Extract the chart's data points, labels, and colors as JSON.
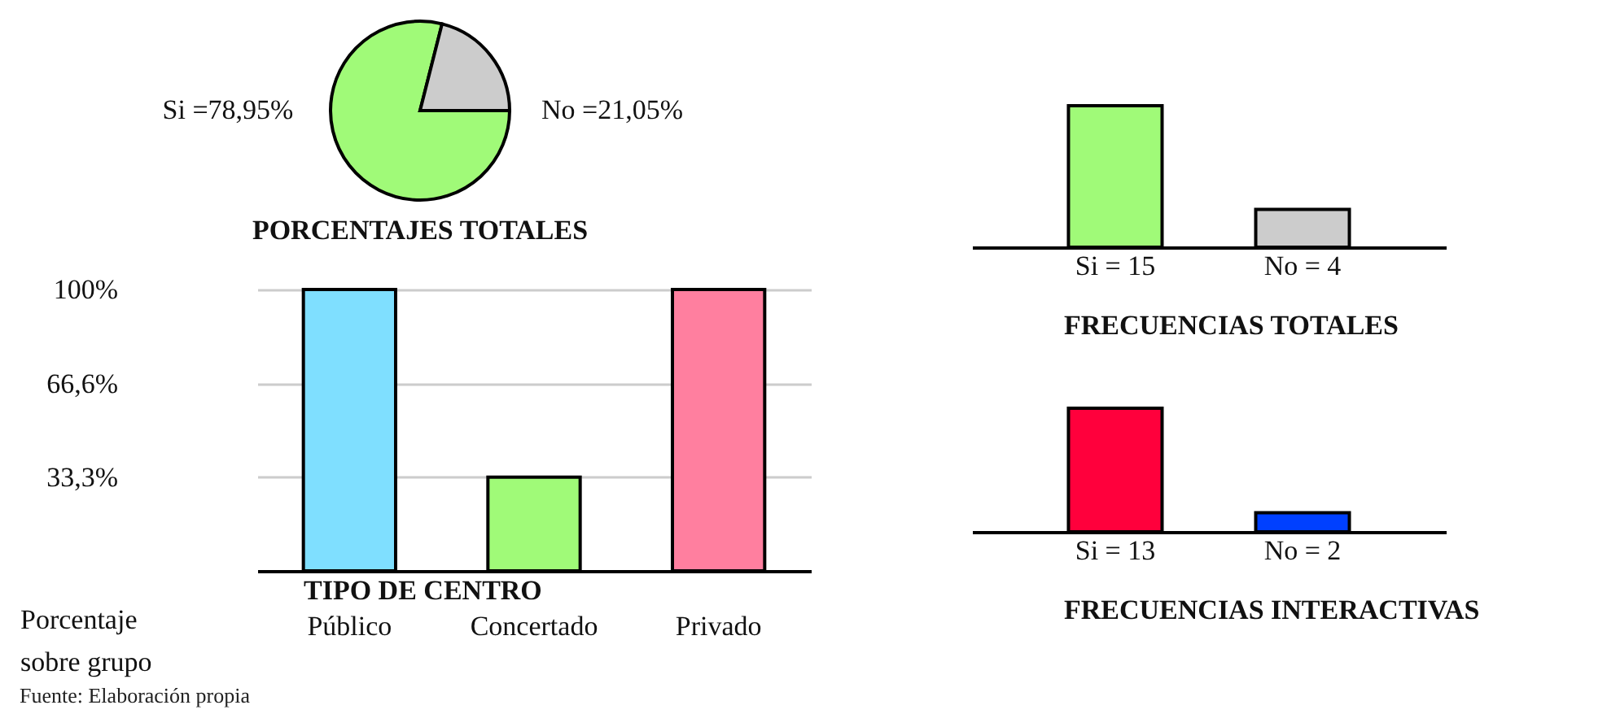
{
  "chart_data": [
    {
      "type": "pie",
      "title": "PORCENTAJES TOTALES",
      "categories": [
        "Si =78,95%",
        "No =21,05%"
      ],
      "values": [
        78.95,
        21.05
      ],
      "colors": [
        "#a0fa78",
        "#cccccc"
      ]
    },
    {
      "type": "bar",
      "categories": [
        "Público",
        "Concertado",
        "Privado"
      ],
      "values": [
        100,
        33.3,
        100
      ],
      "colors": [
        "#7fdfff",
        "#a0fa78",
        "#ff7f9f"
      ],
      "xlabel": "TIPO DE CENTRO",
      "ylabel": "Porcentaje sobre grupo",
      "ylim": [
        0,
        100
      ],
      "yticks": [
        {
          "value": 33.3,
          "label": "33,3%"
        },
        {
          "value": 66.6,
          "label": "66,6%"
        },
        {
          "value": 100,
          "label": "100%"
        }
      ],
      "grid": "y",
      "annotations": [
        "Fuente: Elaboración propia"
      ]
    },
    {
      "type": "bar",
      "title": "FRECUENCIAS TOTALES",
      "categories": [
        null,
        null
      ],
      "values": [
        15,
        4
      ],
      "value_labels": [
        "Si = 15",
        "No = 4"
      ],
      "colors": [
        "#a0fa78",
        "#cccccc"
      ]
    },
    {
      "type": "bar",
      "title": "FRECUENCIAS INTERACTIVAS",
      "categories": [
        null,
        null
      ],
      "values": [
        13,
        2
      ],
      "value_labels": [
        "Si = 13",
        "No = 2"
      ],
      "colors": [
        "#ff003c",
        "#0040ff"
      ]
    }
  ]
}
